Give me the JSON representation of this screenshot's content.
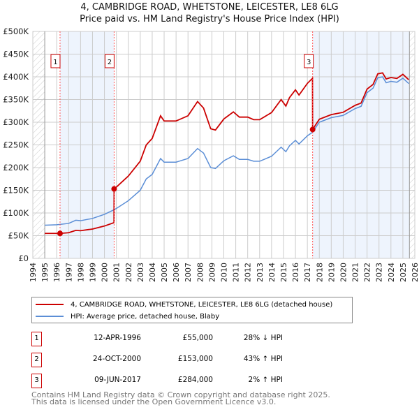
{
  "chart_data": {
    "type": "line",
    "title": "4, CAMBRIDGE ROAD, WHETSTONE, LEICESTER, LE8 6LG",
    "subtitle": "Price paid vs. HM Land Registry's House Price Index (HPI)",
    "xlim": [
      1994,
      2026
    ],
    "ylim": [
      0,
      500000
    ],
    "x_ticks": [
      "1994",
      "1995",
      "1996",
      "1997",
      "1998",
      "1999",
      "2000",
      "2001",
      "2002",
      "2003",
      "2004",
      "2005",
      "2006",
      "2007",
      "2008",
      "2009",
      "2010",
      "2011",
      "2012",
      "2013",
      "2014",
      "2015",
      "2016",
      "2017",
      "2018",
      "2019",
      "2020",
      "2021",
      "2022",
      "2023",
      "2024",
      "2025",
      "2026"
    ],
    "y_ticks": [
      {
        "v": 0,
        "label": "£0"
      },
      {
        "v": 50000,
        "label": "£50K"
      },
      {
        "v": 100000,
        "label": "£100K"
      },
      {
        "v": 150000,
        "label": "£150K"
      },
      {
        "v": 200000,
        "label": "£200K"
      },
      {
        "v": 250000,
        "label": "£250K"
      },
      {
        "v": 300000,
        "label": "£300K"
      },
      {
        "v": 350000,
        "label": "£350K"
      },
      {
        "v": 400000,
        "label": "£400K"
      },
      {
        "v": 450000,
        "label": "£450K"
      },
      {
        "v": 500000,
        "label": "£500K"
      }
    ],
    "hpi_series": {
      "name": "HPI: Average price, detached house, Blaby",
      "color": "#5b8ed6",
      "x": [
        1995,
        1996,
        1997,
        1997.6,
        1998,
        1999,
        2000,
        2000.8,
        2001,
        2002,
        2003,
        2003.5,
        2004,
        2004.7,
        2005,
        2006,
        2007,
        2007.8,
        2008.3,
        2008.9,
        2009.3,
        2010,
        2010.8,
        2011.3,
        2012,
        2012.5,
        2013,
        2014,
        2014.8,
        2015.2,
        2015.5,
        2016,
        2016.3,
        2017,
        2017.44,
        2018,
        2019,
        2020,
        2021,
        2021.5,
        2022,
        2022.5,
        2022.9,
        2023.3,
        2023.6,
        2024,
        2024.5,
        2025,
        2025.5
      ],
      "y": [
        73000,
        74000,
        77000,
        84000,
        83000,
        88000,
        97000,
        107000,
        110000,
        127000,
        150000,
        175000,
        185000,
        220000,
        212000,
        212000,
        220000,
        242000,
        232000,
        200000,
        198000,
        215000,
        226000,
        218000,
        218000,
        214000,
        214000,
        225000,
        245000,
        235000,
        248000,
        260000,
        252000,
        270000,
        278000,
        300000,
        310000,
        315000,
        330000,
        335000,
        365000,
        375000,
        398000,
        400000,
        387000,
        390000,
        388000,
        397000,
        385000
      ]
    },
    "property_series": {
      "name": "4, CAMBRIDGE ROAD, WHETSTONE, LEICESTER, LE8 6LG (detached house)",
      "color": "#cc0000"
    },
    "sales": [
      {
        "n": "1",
        "x": 1996.28,
        "date": "12-APR-1996",
        "price": 55000,
        "price_label": "£55,000",
        "hpi": "28% ↓ HPI"
      },
      {
        "n": "2",
        "x": 2000.81,
        "date": "24-OCT-2000",
        "price": 153000,
        "price_label": "£153,000",
        "hpi": "43% ↑ HPI"
      },
      {
        "n": "3",
        "x": 2017.44,
        "date": "09-JUN-2017",
        "price": 284000,
        "price_label": "£284,000",
        "hpi": "2% ↑ HPI"
      }
    ]
  },
  "footer": {
    "line1": "Contains HM Land Registry data © Crown copyright and database right 2025.",
    "line2": "This data is licensed under the Open Government Licence v3.0."
  }
}
